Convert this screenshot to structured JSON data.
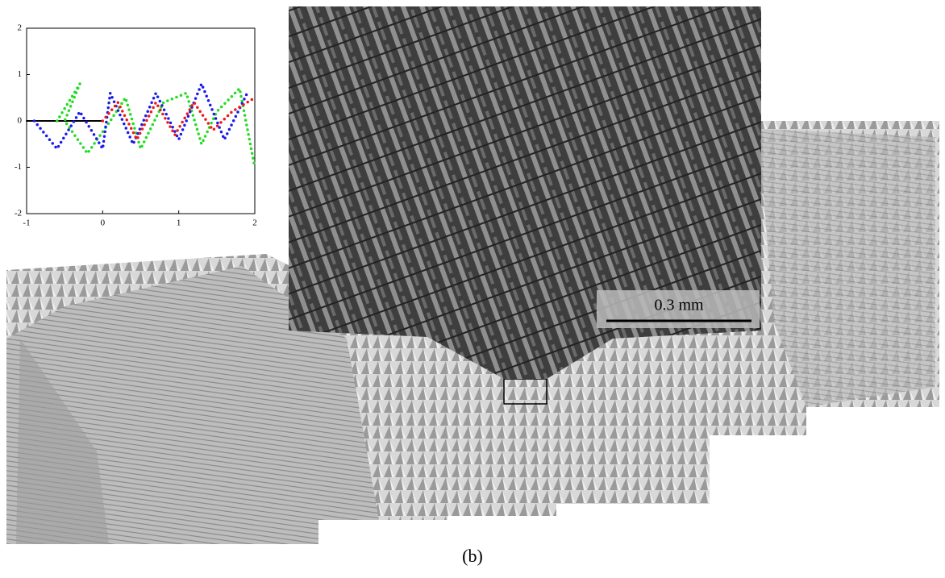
{
  "chart_data": {
    "type": "line",
    "xlim": [
      -1,
      2
    ],
    "ylim": [
      -2,
      2
    ],
    "xticks": [
      -1,
      0,
      1,
      2
    ],
    "yticks": [
      -2,
      -1,
      0,
      1,
      2
    ],
    "series": [
      {
        "color": "#000000",
        "x": [
          -1,
          0
        ],
        "values": [
          0,
          0
        ]
      },
      {
        "color": "#22dd22",
        "x": [
          -0.6,
          -0.3,
          -0.5,
          -0.2,
          0.1,
          0.3,
          0.5,
          0.8,
          1.1,
          1.3,
          1.5,
          1.8,
          2.0
        ],
        "values": [
          0,
          0.8,
          0,
          -0.7,
          0,
          0.5,
          -0.6,
          0.4,
          0.6,
          -0.5,
          0.2,
          0.7,
          -1
        ]
      },
      {
        "color": "#1a1aee",
        "x": [
          -0.9,
          -0.6,
          -0.3,
          0,
          0.1,
          0.4,
          0.7,
          1.0,
          1.3,
          1.6,
          1.9
        ],
        "values": [
          0,
          -0.6,
          0.2,
          -0.6,
          0.6,
          -0.5,
          0.6,
          -0.4,
          0.8,
          -0.4,
          0.6
        ]
      },
      {
        "color": "#ee1a1a",
        "x": [
          0,
          0.2,
          0.45,
          0.7,
          0.95,
          1.2,
          1.45,
          1.7,
          2.0
        ],
        "values": [
          0,
          0.4,
          -0.4,
          0.4,
          -0.3,
          0.4,
          -0.2,
          0.2,
          0.5
        ]
      }
    ]
  },
  "scale_bar": "0.3 mm",
  "caption": "(b)"
}
